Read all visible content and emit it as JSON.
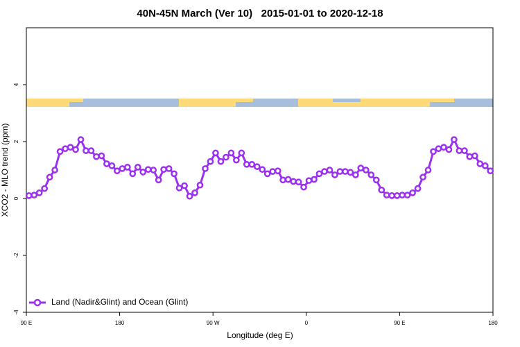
{
  "chart_data": {
    "type": "line",
    "title": "40N-45N March (Ver 10)   2015-01-01 to 2020-12-18",
    "x_label": "Longitude (deg E)",
    "y_label": "XCO2 - MLO trend (ppm)",
    "xlim": [
      90,
      540
    ],
    "xticks": [
      {
        "value": 90,
        "label": "90 E"
      },
      {
        "value": 180,
        "label": "180"
      },
      {
        "value": 270,
        "label": "90 W"
      },
      {
        "value": 360,
        "label": "0"
      },
      {
        "value": 450,
        "label": "90 E"
      },
      {
        "value": 540,
        "label": "180"
      }
    ],
    "ylim": [
      -4,
      6
    ],
    "yticks": [
      -4,
      -2,
      0,
      2,
      4
    ],
    "legend": "bottom-left",
    "x": [
      92.5,
      97.5,
      102.5,
      107.5,
      112.5,
      117.5,
      122.5,
      127.5,
      132.5,
      137.5,
      142.5,
      147.5,
      152.5,
      157.5,
      162.5,
      167.5,
      172.5,
      177.5,
      182.5,
      187.5,
      192.5,
      197.5,
      202.5,
      207.5,
      212.5,
      217.5,
      222.5,
      227.5,
      232.5,
      237.5,
      242.5,
      247.5,
      252.5,
      257.5,
      262.5,
      267.5,
      272.5,
      277.5,
      282.5,
      287.5,
      292.5,
      297.5,
      302.5,
      307.5,
      312.5,
      317.5,
      322.5,
      327.5,
      332.5,
      337.5,
      342.5,
      347.5,
      352.5,
      357.5,
      362.5,
      367.5,
      372.5,
      377.5,
      382.5,
      387.5,
      392.5,
      397.5,
      402.5,
      407.5,
      412.5,
      417.5,
      422.5,
      427.5,
      432.5,
      437.5,
      442.5,
      447.5,
      452.5,
      457.5,
      462.5,
      467.5,
      472.5,
      477.5,
      482.5,
      487.5,
      492.5,
      497.5,
      502.5,
      507.5,
      512.5,
      517.5,
      522.5,
      527.5,
      532.5,
      537.5
    ],
    "series": [
      {
        "name": "Land (Nadir&Glint) and Ocean (Glint)",
        "color": "#9b30f0",
        "values": [
          0.1,
          0.12,
          0.2,
          0.35,
          0.75,
          1.0,
          1.65,
          1.75,
          1.8,
          1.72,
          2.07,
          1.68,
          1.68,
          1.47,
          1.5,
          1.22,
          1.15,
          0.97,
          1.05,
          1.1,
          0.87,
          1.1,
          0.93,
          1.02,
          1.0,
          0.65,
          1.02,
          1.05,
          0.87,
          0.37,
          0.45,
          0.08,
          0.2,
          0.47,
          1.05,
          1.3,
          1.6,
          1.3,
          1.45,
          1.6,
          1.35,
          1.6,
          1.2,
          1.2,
          1.12,
          1.02,
          0.87,
          0.95,
          0.97,
          0.65,
          0.67,
          0.6,
          0.58,
          0.4,
          0.63,
          0.67,
          0.87,
          0.95,
          1.0,
          0.83,
          0.95,
          0.95,
          0.92,
          0.83,
          1.07,
          1.0,
          0.83,
          0.65,
          0.3,
          0.12,
          0.1,
          0.1,
          0.12,
          0.12,
          0.2,
          0.35,
          0.75,
          1.0,
          1.65,
          1.75,
          1.8,
          1.72,
          2.07,
          1.68,
          1.68,
          1.47,
          1.5,
          1.22,
          1.15,
          0.97
        ]
      }
    ]
  }
}
